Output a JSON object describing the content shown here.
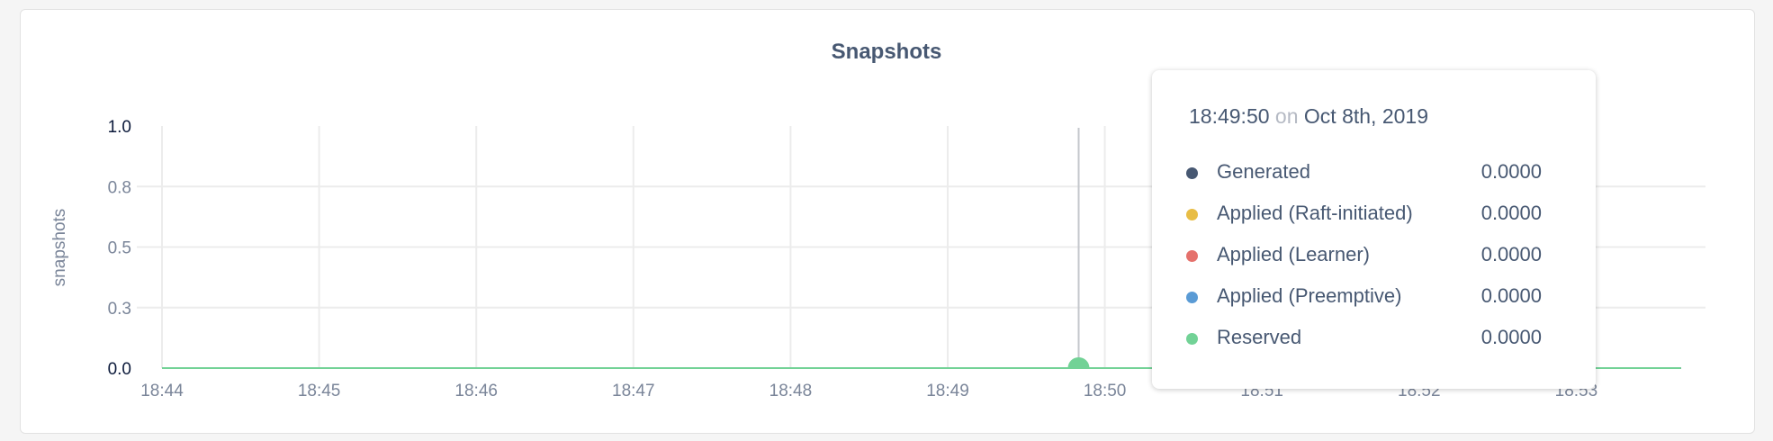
{
  "chart_data": {
    "type": "line",
    "title": "Snapshots",
    "ylabel": "snapshots",
    "xlabel": "",
    "ylim": [
      0,
      1.0
    ],
    "y_ticks": [
      "1.0",
      "0.8",
      "0.5",
      "0.3",
      "0.0"
    ],
    "y_tick_values": [
      1.0,
      0.75,
      0.5,
      0.25,
      0.0
    ],
    "x_ticks": [
      "18:44",
      "18:45",
      "18:46",
      "18:47",
      "18:48",
      "18:49",
      "18:50",
      "18:51",
      "18:52",
      "18:53"
    ],
    "xlim": [
      "18:44:00",
      "18:53:40"
    ],
    "grid": true,
    "x": [
      "18:44:00",
      "18:53:40"
    ],
    "series": [
      {
        "name": "Generated",
        "color": "#475872",
        "values": [
          0,
          0
        ]
      },
      {
        "name": "Applied (Raft-initiated)",
        "color": "#e8bd45",
        "values": [
          0,
          0
        ]
      },
      {
        "name": "Applied (Learner)",
        "color": "#e5716c",
        "values": [
          0,
          0
        ]
      },
      {
        "name": "Applied (Preemptive)",
        "color": "#5a9bd5",
        "values": [
          0,
          0
        ]
      },
      {
        "name": "Reserved",
        "color": "#72d296",
        "values": [
          0,
          0
        ]
      }
    ],
    "hover": {
      "time": "18:49:50",
      "value": 0
    }
  },
  "tooltip": {
    "time": "18:49:50",
    "on": "on",
    "date": "Oct 8th, 2019",
    "rows": [
      {
        "label": "Generated",
        "value": "0.0000",
        "color": "#475872"
      },
      {
        "label": "Applied (Raft-initiated)",
        "value": "0.0000",
        "color": "#e8bd45"
      },
      {
        "label": "Applied (Learner)",
        "value": "0.0000",
        "color": "#e5716c"
      },
      {
        "label": "Applied (Preemptive)",
        "value": "0.0000",
        "color": "#5a9bd5"
      },
      {
        "label": "Reserved",
        "value": "0.0000",
        "color": "#72d296"
      }
    ]
  }
}
